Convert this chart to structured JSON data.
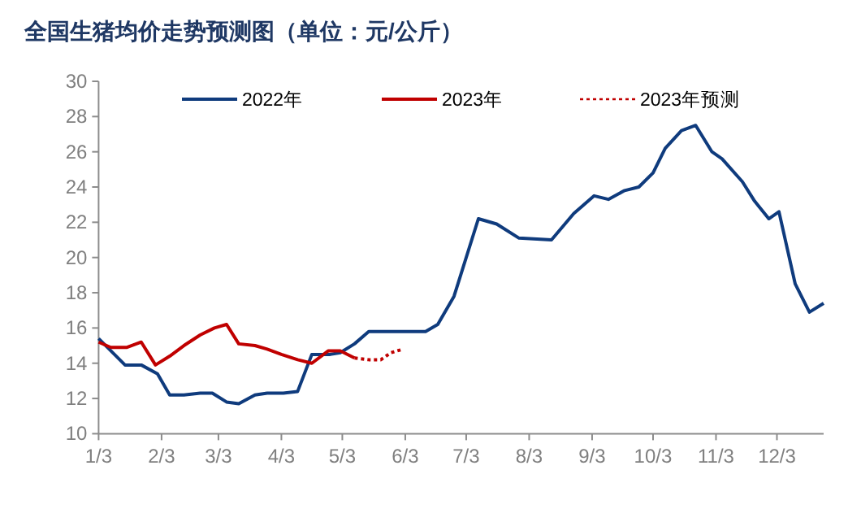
{
  "chart_data": {
    "type": "line",
    "title": "全国生猪均价走势预测图（单位：元/公斤）",
    "xlim": [
      "--01-03",
      "--12-26"
    ],
    "xticks": [
      {
        "value": "--01-03",
        "label": "1/3"
      },
      {
        "value": "--02-03",
        "label": "2/3"
      },
      {
        "value": "--03-03",
        "label": "3/3"
      },
      {
        "value": "--04-03",
        "label": "4/3"
      },
      {
        "value": "--05-03",
        "label": "5/3"
      },
      {
        "value": "--06-03",
        "label": "6/3"
      },
      {
        "value": "--07-03",
        "label": "7/3"
      },
      {
        "value": "--08-03",
        "label": "8/3"
      },
      {
        "value": "--09-03",
        "label": "9/3"
      },
      {
        "value": "--10-03",
        "label": "10/3"
      },
      {
        "value": "--11-03",
        "label": "11/3"
      },
      {
        "value": "--12-03",
        "label": "12/3"
      }
    ],
    "ylim": [
      10,
      30
    ],
    "yticks": [
      10,
      12,
      14,
      16,
      18,
      20,
      22,
      24,
      26,
      28,
      30
    ],
    "grid": false,
    "legend": "top",
    "marker": "none",
    "series": [
      {
        "name": "2022年",
        "color": "#0f3b7d",
        "line_style": "solid",
        "x": [
          "--01-03",
          "--01-16",
          "--01-24",
          "--02-01",
          "--02-07",
          "--02-14",
          "--02-22",
          "--02-28",
          "--03-07",
          "--03-13",
          "--03-21",
          "--03-27",
          "--04-04",
          "--04-11",
          "--04-18",
          "--04-27",
          "--05-02",
          "--05-09",
          "--05-16",
          "--05-24",
          "--06-01",
          "--06-13",
          "--06-19",
          "--06-27",
          "--06-30",
          "--07-09",
          "--07-18",
          "--07-29",
          "--08-14",
          "--08-25",
          "--09-04",
          "--09-11",
          "--09-19",
          "--09-26",
          "--10-03",
          "--10-09",
          "--10-17",
          "--10-24",
          "--11-01",
          "--11-06",
          "--11-16",
          "--11-22",
          "--11-29",
          "--12-04",
          "--12-12",
          "--12-19",
          "--12-26"
        ],
        "values": [
          15.4,
          13.9,
          13.9,
          13.4,
          12.2,
          12.2,
          12.3,
          12.3,
          11.8,
          11.7,
          12.2,
          12.3,
          12.3,
          12.4,
          14.5,
          14.5,
          14.6,
          15.1,
          15.8,
          15.8,
          15.8,
          15.8,
          16.2,
          17.8,
          18.9,
          22.2,
          21.9,
          21.1,
          21.0,
          22.5,
          23.5,
          23.3,
          23.8,
          24.0,
          24.8,
          26.2,
          27.2,
          27.5,
          26.0,
          25.6,
          24.3,
          23.2,
          22.2,
          22.6,
          18.5,
          16.9,
          17.4
        ]
      },
      {
        "name": "2023年",
        "color": "#c00000",
        "line_style": "solid",
        "x": [
          "--01-03",
          "--01-09",
          "--01-17",
          "--01-24",
          "--01-31",
          "--02-07",
          "--02-14",
          "--02-22",
          "--03-01",
          "--03-07",
          "--03-13",
          "--03-21",
          "--03-27",
          "--04-03",
          "--04-11",
          "--04-18",
          "--04-26",
          "--05-02",
          "--05-09"
        ],
        "values": [
          15.2,
          14.9,
          14.9,
          15.2,
          13.9,
          14.4,
          15.0,
          15.6,
          16.0,
          16.2,
          15.1,
          15.0,
          14.8,
          14.5,
          14.2,
          14.0,
          14.7,
          14.7,
          14.3
        ]
      },
      {
        "name": "2023年预测",
        "color": "#c00000",
        "line_style": "dotted",
        "x": [
          "--05-09",
          "--05-16",
          "--05-22",
          "--05-27",
          "--06-02"
        ],
        "values": [
          14.3,
          14.2,
          14.2,
          14.6,
          14.8
        ]
      }
    ]
  }
}
